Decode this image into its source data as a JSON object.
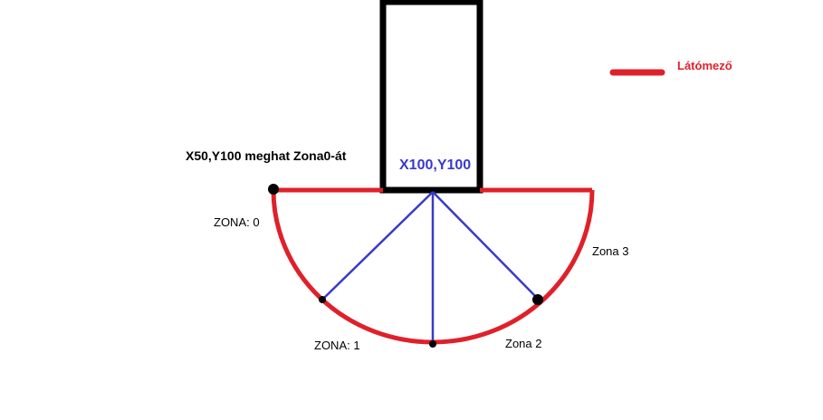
{
  "colors": {
    "field_of_view": "#e0202a",
    "ray": "#3a3ac8",
    "outline": "#000000",
    "text": "#000000",
    "legend_text": "#e0202a",
    "origin_text": "#3a3ac8"
  },
  "legend": {
    "label": "Látómező"
  },
  "labels": {
    "origin": "X100,Y100",
    "note": "X50,Y100  meghat Zona0-át",
    "zone0": "ZONA: 0",
    "zone1": "ZONA: 1",
    "zone2": "Zona 2",
    "zone3": "Zona 3"
  }
}
